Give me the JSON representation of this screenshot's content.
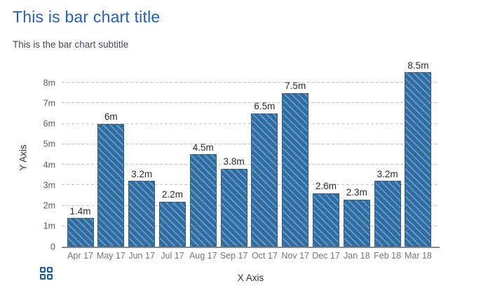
{
  "header": {
    "title": "This is bar chart title",
    "subtitle": "This is the bar chart subtitle"
  },
  "chart_data": {
    "type": "bar",
    "title": "This is bar chart title",
    "subtitle": "This is the bar chart subtitle",
    "xlabel": "X Axis",
    "ylabel": "Y Axis",
    "categories": [
      "Apr 17",
      "May 17",
      "Jun 17",
      "Jul 17",
      "Aug 17",
      "Sep 17",
      "Oct 17",
      "Nov 17",
      "Dec 17",
      "Jan 18",
      "Feb 18",
      "Mar 18"
    ],
    "values": [
      1.4,
      6,
      3.2,
      2.2,
      4.5,
      3.8,
      6.5,
      7.5,
      2.6,
      2.3,
      3.2,
      8.5
    ],
    "value_labels": [
      "1.4m",
      "6m",
      "3.2m",
      "2.2m",
      "4.5m",
      "3.8m",
      "6.5m",
      "7.5m",
      "2.6m",
      "2.3m",
      "3.2m",
      "8.5m"
    ],
    "y_ticks": [
      "0",
      "1m",
      "2m",
      "3m",
      "4m",
      "5m",
      "6m",
      "7m",
      "8m"
    ],
    "ylim": [
      0,
      8.7
    ],
    "grid": "horizontal-dashed",
    "legend": "none",
    "bar_style": "diagonal-hatch"
  },
  "controls": {
    "grid_menu_icon": "grid-2x2"
  },
  "colors": {
    "title": "#2160bf",
    "subtitle": "#45455f",
    "bar": "#2e6da4",
    "hatch": "rgba(255,255,255,0.28)",
    "axis_line": "#8c8c8c",
    "gridline": "#c6c6c6",
    "y_tick_label": "#595959",
    "x_tick_label": "#757575",
    "value_label": "#2d2d2d",
    "icon_blue": "#0d54d8"
  }
}
